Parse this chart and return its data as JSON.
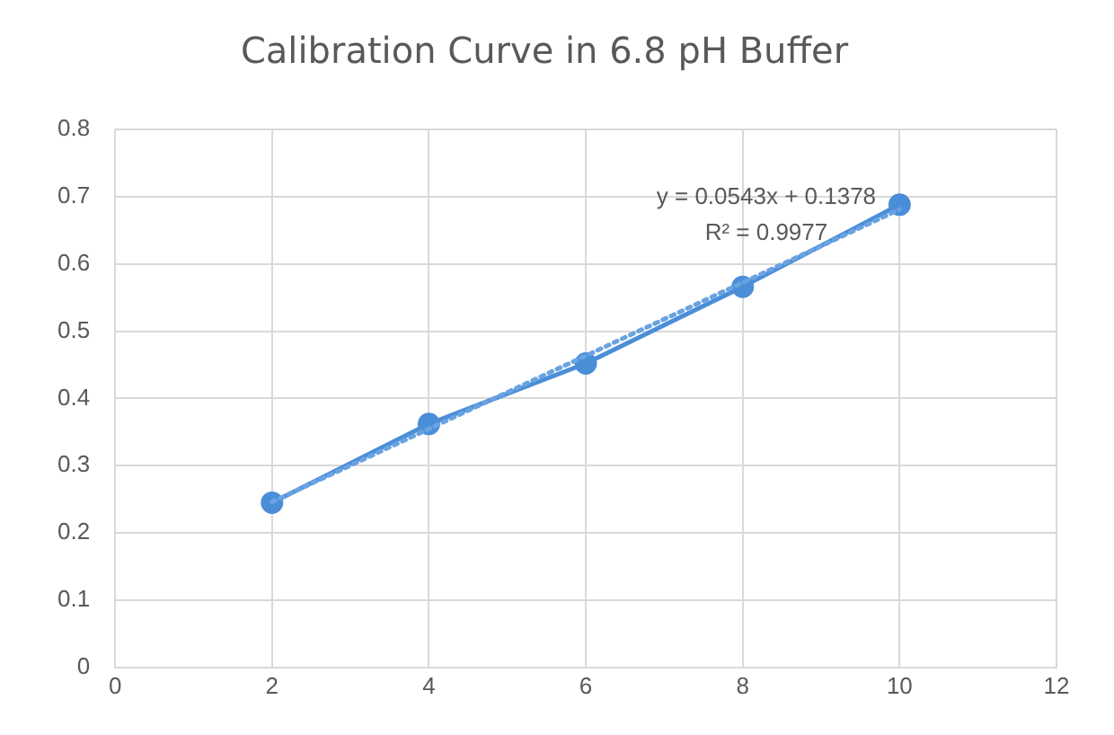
{
  "chart_data": {
    "type": "line",
    "title": "Calibration Curve in 6.8 pH Buffer",
    "x": [
      2,
      4,
      6,
      8,
      10
    ],
    "series": [
      {
        "color": "#4a8ed8",
        "values": [
          0.245,
          0.362,
          0.452,
          0.566,
          0.688
        ],
        "marker": "circle",
        "line_style": "solid"
      },
      {
        "type": "line",
        "color": "#6aa3e0",
        "x": [
          2,
          10
        ],
        "values": [
          0.246,
          0.681
        ],
        "marker": "none",
        "line_style": "dotted"
      }
    ],
    "xlim": [
      0,
      12
    ],
    "xticks": [
      0,
      2,
      4,
      6,
      8,
      10,
      12
    ],
    "ylim": [
      0,
      0.8
    ],
    "yticks": [
      0,
      0.1,
      0.2,
      0.3,
      0.4,
      0.5,
      0.6,
      0.7,
      0.8
    ],
    "grid": true,
    "legend": false,
    "annotations": [
      "y = 0.0543x + 0.1378",
      "R² = 0.9977"
    ]
  }
}
